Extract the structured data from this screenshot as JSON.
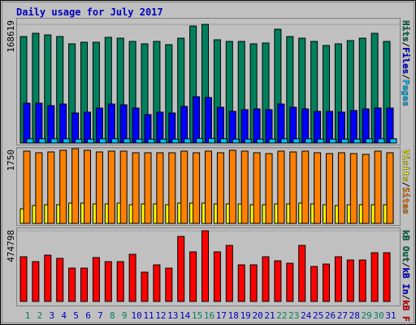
{
  "chart_data": [
    {
      "type": "bar",
      "title": "Daily usage for July 2017",
      "ylim": [
        0,
        168619
      ],
      "yticks": [
        168619
      ],
      "legend_separator": "/",
      "series": [
        {
          "name": "Hits",
          "color": "#00805c",
          "values": [
            151300,
            155900,
            153600,
            151300,
            140900,
            143200,
            143200,
            150200,
            149000,
            144400,
            140900,
            144400,
            139800,
            149000,
            166300,
            168619,
            146700,
            144400,
            144400,
            140900,
            142100,
            161700,
            151300,
            149000,
            144400,
            138600,
            140900,
            145500,
            149000,
            155900,
            144400
          ]
        },
        {
          "name": "Files",
          "color": "#0000ff",
          "values": [
            56600,
            56600,
            53100,
            55400,
            42700,
            43900,
            49700,
            55400,
            54300,
            49700,
            40400,
            43900,
            42700,
            52000,
            65800,
            64700,
            50800,
            45000,
            47400,
            48500,
            47400,
            55400,
            50800,
            48500,
            45000,
            45000,
            43900,
            46200,
            48500,
            49700,
            49700
          ]
        },
        {
          "name": "Pages",
          "color": "#00c0ff",
          "values": [
            6000,
            6000,
            6000,
            6000,
            5500,
            5500,
            6000,
            6000,
            6000,
            5500,
            5500,
            5500,
            5500,
            6000,
            6500,
            6500,
            6000,
            5500,
            5500,
            5500,
            5500,
            6000,
            6000,
            6000,
            5500,
            5500,
            5500,
            5500,
            6000,
            6000,
            6000
          ]
        }
      ]
    },
    {
      "type": "bar",
      "ylim": [
        0,
        1750
      ],
      "yticks": [
        1750
      ],
      "legend_separator": "/",
      "series": [
        {
          "name": "Visits",
          "color": "#ffff00",
          "values": [
            342,
            419,
            438,
            438,
            476,
            476,
            457,
            457,
            476,
            438,
            457,
            457,
            438,
            476,
            476,
            476,
            457,
            457,
            457,
            438,
            438,
            457,
            457,
            476,
            457,
            438,
            419,
            438,
            438,
            438,
            438
          ]
        },
        {
          "name": "Sites",
          "color": "#ff8000",
          "values": [
            1693,
            1655,
            1674,
            1712,
            1750,
            1712,
            1674,
            1693,
            1693,
            1655,
            1655,
            1655,
            1655,
            1693,
            1655,
            1693,
            1655,
            1712,
            1693,
            1655,
            1636,
            1693,
            1674,
            1693,
            1655,
            1636,
            1655,
            1636,
            1617,
            1693,
            1655
          ]
        }
      ]
    },
    {
      "type": "bar",
      "ylim": [
        0,
        474798
      ],
      "yticks": [
        474798
      ],
      "legend_separator": "/",
      "legend_extra": [
        {
          "name": "kB Out",
          "color": "#00805c"
        },
        {
          "name": "kB In",
          "color": "#0000ff"
        }
      ],
      "series": [
        {
          "name": "kB F",
          "color": "#ff0000",
          "values": [
            300100,
            267400,
            311000,
            289200,
            223700,
            223700,
            294700,
            267400,
            267400,
            316500,
            196500,
            245600,
            223700,
            436600,
            332900,
            474798,
            332900,
            376500,
            245600,
            245600,
            300100,
            272900,
            256500,
            376500,
            234700,
            251000,
            300100,
            278300,
            278300,
            327400,
            327400
          ]
        }
      ],
      "categories": [
        "1",
        "2",
        "3",
        "4",
        "5",
        "6",
        "7",
        "8",
        "9",
        "10",
        "11",
        "12",
        "13",
        "14",
        "15",
        "16",
        "17",
        "18",
        "19",
        "20",
        "21",
        "22",
        "23",
        "24",
        "25",
        "26",
        "27",
        "28",
        "29",
        "30",
        "31"
      ],
      "category_colors": [
        "#00805c",
        "#00805c",
        "#0000c0",
        "#0000c0",
        "#0000c0",
        "#0000c0",
        "#0000c0",
        "#00805c",
        "#00805c",
        "#0000c0",
        "#0000c0",
        "#0000c0",
        "#0000c0",
        "#0000c0",
        "#00805c",
        "#00805c",
        "#0000c0",
        "#0000c0",
        "#0000c0",
        "#0000c0",
        "#0000c0",
        "#00805c",
        "#00805c",
        "#0000c0",
        "#0000c0",
        "#0000c0",
        "#0000c0",
        "#0000c0",
        "#00805c",
        "#00805c",
        "#0000c0"
      ]
    }
  ]
}
